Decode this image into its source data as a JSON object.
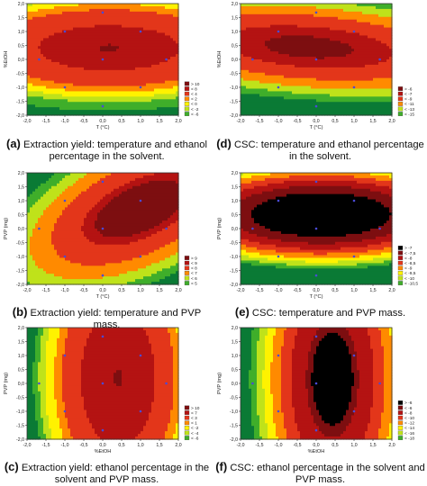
{
  "colors": {
    "very_low": "#0a7a35",
    "low": "#3fae2a",
    "lowmid": "#bfe21a",
    "mid": "#fff200",
    "midhigh": "#ff8a00",
    "high": "#e3361a",
    "top": "#b41312",
    "darkest": "#7d0e10",
    "grid_point": "#4a4ad6"
  },
  "chart_data": [
    {
      "id": "a",
      "type": "heatmap",
      "caption_letter": "(a)",
      "caption_text": "Extraction yield: temperature and ethanol percentage in the solvent.",
      "xlabel": "T (°C)",
      "ylabel": "%EtOH",
      "xlim": [
        -2.0,
        2.0
      ],
      "ylim": [
        -2.0,
        2.0
      ],
      "xticks": [
        "-2,0",
        "-1,5",
        "-1,0",
        "-0,5",
        "0,0",
        "0,5",
        "1,0",
        "1,5",
        "2,0"
      ],
      "yticks": [
        "-2,0",
        "-1,5",
        "-1,0",
        "-0,5",
        "0,0",
        "0,5",
        "1,0",
        "1,5",
        "2,0"
      ],
      "legend": [
        "> 10",
        "< 8",
        "< 4",
        "< 2",
        "< 0",
        "< -2",
        "< -6"
      ],
      "model": {
        "c": 9.5,
        "x": 0.2,
        "y": 2.6,
        "xx": -0.6,
        "yy": -3.2,
        "xy": 0.0
      },
      "thresholds": [
        -6,
        -2,
        0,
        2,
        4,
        8,
        10
      ],
      "points": [
        [
          0,
          0
        ],
        [
          -1,
          1
        ],
        [
          1,
          1
        ],
        [
          -1,
          -1
        ],
        [
          1,
          -1
        ],
        [
          -1.68,
          0
        ],
        [
          1.68,
          0
        ],
        [
          0,
          1.68
        ],
        [
          0,
          -1.68
        ]
      ]
    },
    {
      "id": "b",
      "type": "heatmap",
      "caption_letter": "(b)",
      "caption_text": "Extraction yield: temperature and PVP mass.",
      "xlabel": "T (°C)",
      "ylabel": "PVP (mg)",
      "xlim": [
        -2.0,
        2.0
      ],
      "ylim": [
        -2.0,
        2.0
      ],
      "xticks": [
        "-2,0",
        "-1,5",
        "-1,0",
        "-0,5",
        "0,0",
        "0,5",
        "1,0",
        "1,5",
        "2,0"
      ],
      "yticks": [
        "-2,0",
        "-1,5",
        "-1,0",
        "-0,5",
        "0,0",
        "0,5",
        "1,0",
        "1,5",
        "2,0"
      ],
      "legend": [
        "> 9",
        "< 9",
        "< 8",
        "< 7",
        "< 6",
        "< 5"
      ],
      "model": {
        "c": 9.4,
        "x": 0.5,
        "y": 0.3,
        "xx": -0.45,
        "yy": -0.6,
        "xy": 0.55
      },
      "thresholds": [
        5,
        6,
        7,
        8,
        9,
        9.3
      ],
      "points": [
        [
          0,
          0
        ],
        [
          -1,
          1
        ],
        [
          1,
          1
        ],
        [
          -1,
          -1
        ],
        [
          1,
          -1
        ],
        [
          -1.68,
          0
        ],
        [
          1.68,
          0
        ],
        [
          0,
          1.68
        ],
        [
          0,
          -1.68
        ]
      ]
    },
    {
      "id": "c",
      "type": "heatmap",
      "caption_letter": "(c)",
      "caption_text": "Extraction yield: ethanol percentage in the solvent and PVP mass.",
      "xlabel": "%EtOH",
      "ylabel": "PVP (mg)",
      "xlim": [
        -2.0,
        2.0
      ],
      "ylim": [
        -2.0,
        2.0
      ],
      "xticks": [
        "-2,0",
        "-1,5",
        "-1,0",
        "-0,5",
        "0,0",
        "0,5",
        "1,0",
        "1,5",
        "2,0"
      ],
      "yticks": [
        "-2,0",
        "-1,5",
        "-1,0",
        "-0,5",
        "0,0",
        "0,5",
        "1,0",
        "1,5",
        "2,0"
      ],
      "legend": [
        "> 10",
        "< 7",
        "< 3",
        "< 1",
        "< -2",
        "< -4",
        "< -6"
      ],
      "model": {
        "c": 9.5,
        "x": 2.6,
        "y": 0.2,
        "xx": -3.2,
        "yy": -0.5,
        "xy": 0.0
      },
      "thresholds": [
        -6,
        -4,
        -2,
        1,
        3,
        7,
        10
      ],
      "points": [
        [
          0,
          0
        ],
        [
          -1,
          1
        ],
        [
          1,
          1
        ],
        [
          -1,
          -1
        ],
        [
          1,
          -1
        ],
        [
          -1.68,
          0
        ],
        [
          1.68,
          0
        ],
        [
          0,
          1.68
        ],
        [
          0,
          -1.68
        ]
      ]
    },
    {
      "id": "d",
      "type": "heatmap",
      "caption_letter": "(d)",
      "caption_text": "CSC: temperature and ethanol percentage in the solvent.",
      "xlabel": "T (°C)",
      "ylabel": "%EtOH",
      "xlim": [
        -2.0,
        2.0
      ],
      "ylim": [
        -2.0,
        2.0
      ],
      "xticks": [
        "-2,0",
        "-1,5",
        "-1,0",
        "-0,5",
        "0,0",
        "0,5",
        "1,0",
        "1,5",
        "2,0"
      ],
      "yticks": [
        "-2,0",
        "-1,5",
        "-1,0",
        "-0,5",
        "0,0",
        "0,5",
        "1,0",
        "1,5",
        "2,0"
      ],
      "legend": [
        "> -6",
        "< -7",
        "< -9",
        "< -11",
        "< -13",
        "< -15"
      ],
      "model": {
        "c": -6.1,
        "x": 0.1,
        "y": 2.2,
        "xx": -0.3,
        "yy": -2.6,
        "xy": -0.5
      },
      "thresholds": [
        -15,
        -13,
        -11,
        -9,
        -7,
        -6
      ],
      "points": [
        [
          0,
          0
        ],
        [
          -1,
          1
        ],
        [
          1,
          1
        ],
        [
          -1,
          -1
        ],
        [
          1,
          -1
        ],
        [
          -1.68,
          0
        ],
        [
          1.68,
          0
        ],
        [
          0,
          1.68
        ],
        [
          0,
          -1.68
        ]
      ]
    },
    {
      "id": "e",
      "type": "heatmap",
      "caption_letter": "(e)",
      "caption_text": "CSC: temperature and PVP mass.",
      "xlabel": "T (°C)",
      "ylabel": "PVP (mg)",
      "xlim": [
        -2.0,
        2.0
      ],
      "ylim": [
        -2.0,
        2.0
      ],
      "xticks": [
        "-2,0",
        "-1,5",
        "-1,0",
        "-0,5",
        "0,0",
        "0,5",
        "1,0",
        "1,5",
        "2,0"
      ],
      "yticks": [
        "-2,0",
        "-1,5",
        "-1,0",
        "-0,5",
        "0,0",
        "0,5",
        "1,0",
        "1,5",
        "2,0"
      ],
      "legend": [
        "> -7",
        "< -7,5",
        "< -8",
        "< -8,5",
        "< -9",
        "< -9,5",
        "< -10",
        "< -10,5"
      ],
      "model": {
        "c": -6.6,
        "x": 0.05,
        "y": 1.1,
        "xx": -0.2,
        "yy": -1.1,
        "xy": 0.0
      },
      "thresholds": [
        -10.5,
        -10,
        -9.5,
        -9,
        -8.5,
        -8,
        -7.5,
        -7
      ],
      "points": [
        [
          0,
          0
        ],
        [
          -1,
          1
        ],
        [
          1,
          1
        ],
        [
          -1,
          -1
        ],
        [
          1,
          -1
        ],
        [
          -1.68,
          0
        ],
        [
          1.68,
          0
        ],
        [
          0,
          1.68
        ],
        [
          0,
          -1.68
        ]
      ]
    },
    {
      "id": "f",
      "type": "heatmap",
      "caption_letter": "(f)",
      "caption_text": "CSC: ethanol percentage in the solvent and PVP mass.",
      "xlabel": "%EtOH",
      "ylabel": "PVP (mg)",
      "xlim": [
        -2.0,
        2.0
      ],
      "ylim": [
        -2.0,
        2.0
      ],
      "xticks": [
        "-2,0",
        "-1,5",
        "-1,0",
        "-0,5",
        "0,0",
        "0,5",
        "1,0",
        "1,5",
        "2,0"
      ],
      "yticks": [
        "-2,0",
        "-1,5",
        "-1,0",
        "-0,5",
        "0,0",
        "0,5",
        "1,0",
        "1,5",
        "2,0"
      ],
      "legend": [
        "> -6",
        "< -6",
        "< -8",
        "< -10",
        "< -12",
        "< -14",
        "< -16",
        "< -18"
      ],
      "model": {
        "c": -5.2,
        "x": 2.4,
        "y": 0.1,
        "xx": -2.8,
        "yy": -0.3,
        "xy": 0.0
      },
      "thresholds": [
        -18,
        -16,
        -14,
        -12,
        -10,
        -8,
        -6,
        -5.5
      ],
      "points": [
        [
          0,
          0
        ],
        [
          -1,
          1
        ],
        [
          1,
          1
        ],
        [
          -1,
          -1
        ],
        [
          1,
          -1
        ],
        [
          -1.68,
          0
        ],
        [
          1.68,
          0
        ],
        [
          0,
          1.68
        ],
        [
          0,
          -1.68
        ]
      ]
    }
  ]
}
